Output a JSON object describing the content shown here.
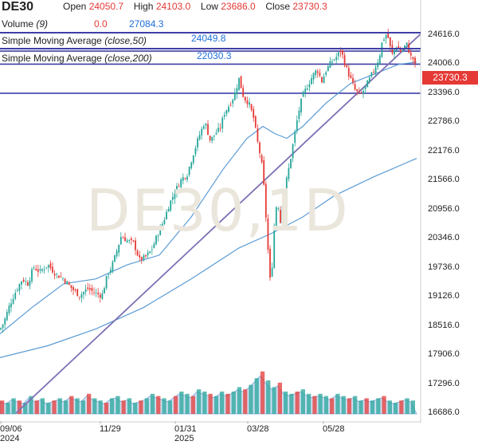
{
  "header": {
    "symbol": "DE30",
    "open_label": "Open",
    "open_value": "24050.7",
    "high_label": "High",
    "high_value": "24103.0",
    "low_label": "Low",
    "low_value": "23686.0",
    "close_label": "Close",
    "close_value": "23730.3",
    "volume_label": "Volume",
    "volume_param": "(9)",
    "volume_value": "0.0",
    "volume_ma_value": "27084.3",
    "sma50_label": "Simple Moving Average",
    "sma50_param": "(close,50)",
    "sma50_value": "24049.8",
    "sma200_label": "Simple Moving Average",
    "sma200_param": "(close,200)",
    "sma200_value": "22030.3"
  },
  "watermark": "DE30,1D",
  "last_price_tag": "23730.3",
  "colors": {
    "up": "#26a69a",
    "down": "#e53935",
    "ma": "#5b9bd5",
    "trend": "#7e6fb5",
    "hline": "#3f3fa6",
    "volume": "#a9c4e8"
  },
  "chart_data": {
    "type": "candlestick",
    "y_ticks": [
      "24616.0",
      "24006.0",
      "23396.0",
      "22786.0",
      "22176.0",
      "21566.0",
      "20956.0",
      "20346.0",
      "19736.0",
      "19126.0",
      "18516.0",
      "17906.0",
      "17296.0",
      "16686.0"
    ],
    "ylim": [
      16686,
      24616
    ],
    "x_ticks": [
      {
        "label": "09/06",
        "sub": "2024"
      },
      {
        "label": "11/29",
        "sub": ""
      },
      {
        "label": "01/31",
        "sub": "2025"
      },
      {
        "label": "03/28",
        "sub": ""
      },
      {
        "label": "05/28",
        "sub": ""
      }
    ],
    "price_path": [
      [
        0,
        18440
      ],
      [
        5,
        18600
      ],
      [
        12,
        18950
      ],
      [
        20,
        19250
      ],
      [
        28,
        19500
      ],
      [
        35,
        19400
      ],
      [
        42,
        19750
      ],
      [
        50,
        19650
      ],
      [
        60,
        19800
      ],
      [
        70,
        19600
      ],
      [
        80,
        19500
      ],
      [
        90,
        19300
      ],
      [
        100,
        19150
      ],
      [
        110,
        19300
      ],
      [
        120,
        19200
      ],
      [
        128,
        19150
      ],
      [
        135,
        19600
      ],
      [
        140,
        19750
      ],
      [
        145,
        20000
      ],
      [
        152,
        20400
      ],
      [
        160,
        20300
      ],
      [
        168,
        20250
      ],
      [
        175,
        19900
      ],
      [
        182,
        19950
      ],
      [
        190,
        20100
      ],
      [
        197,
        20400
      ],
      [
        205,
        20700
      ],
      [
        212,
        21050
      ],
      [
        220,
        21350
      ],
      [
        228,
        21600
      ],
      [
        235,
        21700
      ],
      [
        242,
        22100
      ],
      [
        250,
        22500
      ],
      [
        257,
        22800
      ],
      [
        264,
        22400
      ],
      [
        270,
        22550
      ],
      [
        276,
        22650
      ],
      [
        282,
        23000
      ],
      [
        288,
        23150
      ],
      [
        294,
        23350
      ],
      [
        300,
        23700
      ],
      [
        306,
        23300
      ],
      [
        312,
        23200
      ],
      [
        318,
        22900
      ],
      [
        324,
        22300
      ],
      [
        328,
        22000
      ],
      [
        332,
        21300
      ],
      [
        336,
        20200
      ],
      [
        340,
        19250
      ],
      [
        344,
        20600
      ],
      [
        348,
        21200
      ],
      [
        352,
        20700
      ],
      [
        356,
        21300
      ],
      [
        360,
        21600
      ],
      [
        364,
        21950
      ],
      [
        368,
        22350
      ],
      [
        372,
        22750
      ],
      [
        376,
        23100
      ],
      [
        380,
        23350
      ],
      [
        386,
        23550
      ],
      [
        392,
        23750
      ],
      [
        398,
        23900
      ],
      [
        404,
        23650
      ],
      [
        410,
        23900
      ],
      [
        416,
        24050
      ],
      [
        422,
        24150
      ],
      [
        428,
        24300
      ],
      [
        434,
        23950
      ],
      [
        440,
        23700
      ],
      [
        446,
        23450
      ],
      [
        452,
        23350
      ],
      [
        458,
        23500
      ],
      [
        464,
        23700
      ],
      [
        470,
        23900
      ],
      [
        476,
        24150
      ],
      [
        480,
        24500
      ],
      [
        486,
        24650
      ],
      [
        492,
        24200
      ],
      [
        498,
        24400
      ],
      [
        504,
        24250
      ],
      [
        510,
        24450
      ],
      [
        516,
        24150
      ],
      [
        520,
        24100
      ],
      [
        523,
        23730
      ]
    ],
    "sma50": [
      [
        0,
        18350
      ],
      [
        40,
        18900
      ],
      [
        80,
        19400
      ],
      [
        120,
        19500
      ],
      [
        160,
        19800
      ],
      [
        200,
        20000
      ],
      [
        240,
        20800
      ],
      [
        280,
        21800
      ],
      [
        310,
        22450
      ],
      [
        330,
        22700
      ],
      [
        345,
        22550
      ],
      [
        360,
        22450
      ],
      [
        380,
        22700
      ],
      [
        410,
        23200
      ],
      [
        440,
        23600
      ],
      [
        470,
        23800
      ],
      [
        500,
        24000
      ],
      [
        523,
        24049.8
      ]
    ],
    "sma200": [
      [
        0,
        17850
      ],
      [
        60,
        18100
      ],
      [
        120,
        18450
      ],
      [
        180,
        18900
      ],
      [
        240,
        19500
      ],
      [
        300,
        20150
      ],
      [
        340,
        20450
      ],
      [
        380,
        20800
      ],
      [
        420,
        21250
      ],
      [
        470,
        21650
      ],
      [
        523,
        22030.3
      ]
    ],
    "trendline": [
      [
        20,
        16686
      ],
      [
        528,
        24640
      ]
    ],
    "hlines": [
      24280,
      24006,
      23396
    ],
    "volume": [
      0.6,
      0.5,
      0.7,
      0.6,
      0.5,
      0.8,
      0.6,
      0.7,
      0.5,
      0.6,
      0.7,
      0.6,
      0.8,
      0.7,
      0.6,
      0.9,
      0.7,
      0.6,
      0.5,
      0.7,
      0.8,
      0.6,
      0.7,
      0.5,
      0.6,
      0.7,
      0.9,
      0.8,
      0.7,
      0.6,
      0.8,
      1.0,
      0.9,
      0.8,
      1.1,
      1.0,
      0.9,
      0.8,
      1.0,
      0.9,
      1.0,
      1.2,
      1.1,
      1.3,
      1.6,
      1.9,
      1.5,
      1.2,
      1.4,
      1.0,
      0.9,
      1.0,
      1.1,
      0.9,
      0.8,
      0.9,
      0.8,
      0.7,
      0.9,
      0.8,
      0.7,
      0.8,
      0.6,
      0.7,
      0.6,
      0.7,
      0.8,
      0.6,
      0.5,
      0.6,
      0.7,
      0.6
    ]
  }
}
